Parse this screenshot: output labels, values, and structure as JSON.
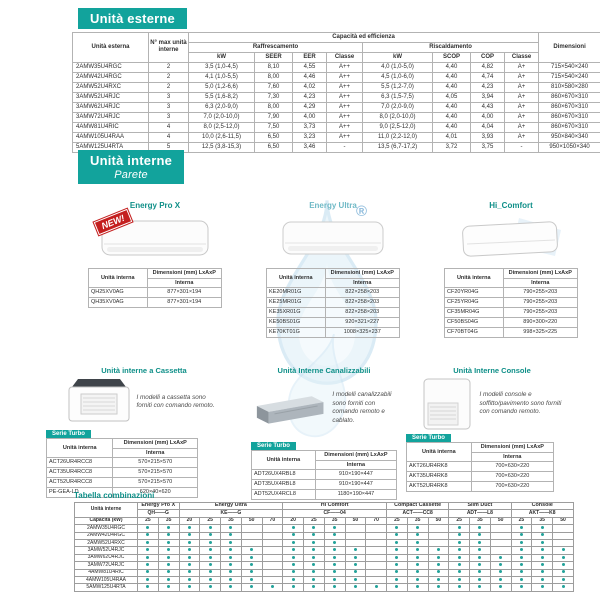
{
  "colors": {
    "teal": "#12a39c",
    "teal_text": "#0e8f88",
    "dot": "#23a29a",
    "new_badge_red": "#c41f1f",
    "watermark_blue": "#d8ecf7"
  },
  "watermark": {
    "registered_mark": "®"
  },
  "external": {
    "title": "Unità esterne",
    "table": {
      "col1": "Unità esterna",
      "col2": "N° max unità interne",
      "cap_header": "Capacità ed efficienza",
      "cooling": "Raffrescamento",
      "heating": "Riscaldamento",
      "sub": [
        "kW",
        "SEER",
        "EER",
        "Classe",
        "kW",
        "SCOP",
        "COP",
        "Classe"
      ],
      "dim": "Dimensioni",
      "rows": [
        [
          "2AMW35U4RGC",
          "2",
          "3,5 (1,0-4,5)",
          "8,10",
          "4,55",
          "A++",
          "4,0 (1,0-5,0)",
          "4,40",
          "4,82",
          "A+",
          "715×540×240"
        ],
        [
          "2AMW42U4RGC",
          "2",
          "4,1 (1,0-5,5)",
          "8,00",
          "4,46",
          "A++",
          "4,5 (1,0-6,0)",
          "4,40",
          "4,74",
          "A+",
          "715×540×240"
        ],
        [
          "2AMW52U4RXC",
          "2",
          "5,0 (1,2-6,6)",
          "7,60",
          "4,02",
          "A++",
          "5,5 (1,2-7,0)",
          "4,40",
          "4,23",
          "A+",
          "810×580×280"
        ],
        [
          "3AMW52U4RJC",
          "3",
          "5,5 (1,6-8,2)",
          "7,30",
          "4,23",
          "A++",
          "6,3 (1,5-7,5)",
          "4,05",
          "3,94",
          "A+",
          "860×670×310"
        ],
        [
          "3AMW62U4RJC",
          "3",
          "6,3 (2,0-9,0)",
          "8,00",
          "4,29",
          "A++",
          "7,0 (2,0-9,0)",
          "4,40",
          "4,43",
          "A+",
          "860×670×310"
        ],
        [
          "3AMW72U4RJC",
          "3",
          "7,0 (2,0-10,0)",
          "7,90",
          "4,00",
          "A++",
          "8,0 (2,0-10,0)",
          "4,40",
          "4,00",
          "A+",
          "860×670×310"
        ],
        [
          "4AMW81U4RIC",
          "4",
          "8,0 (2,5-12,0)",
          "7,50",
          "3,73",
          "A++",
          "9,0 (2,5-12,0)",
          "4,40",
          "4,04",
          "A+",
          "860×670×310"
        ],
        [
          "4AMW105U4RAA",
          "4",
          "10,0 (2,6-11,5)",
          "6,50",
          "3,23",
          "A++",
          "11,0 (2,2-12,0)",
          "4,01",
          "3,93",
          "A+",
          "950×840×340"
        ],
        [
          "5AMW125U4RTA",
          "5",
          "12,5 (3,8-15,3)",
          "6,50",
          "3,46",
          "-",
          "13,5 (6,7-17,2)",
          "3,72",
          "3,75",
          "-",
          "950×1050×340"
        ]
      ]
    }
  },
  "wall": {
    "title": "Unità interne",
    "subtitle": "Parete",
    "new_badge": "NEW!",
    "table_headers": {
      "unit": "Unità interna",
      "dim": "Dimensioni (mm) LxAxP",
      "sub": "Interna"
    },
    "products": [
      {
        "name": "Energy Pro X",
        "rows": [
          [
            "QH25XV0AG",
            "877×301×194"
          ],
          [
            "QH35XV0AG",
            "877×301×194"
          ]
        ]
      },
      {
        "name": "Energy Ultra",
        "rows": [
          [
            "KE20MR01G",
            "822×258×203"
          ],
          [
            "KE25MR01G",
            "822×258×203"
          ],
          [
            "KE35XR01G",
            "822×258×203"
          ],
          [
            "KE50BS01G",
            "920×321×227"
          ],
          [
            "KE70KT01G",
            "1008×325×237"
          ]
        ]
      },
      {
        "name": "Hi_Comfort",
        "rows": [
          [
            "CF20YR04G",
            "790×255×203"
          ],
          [
            "CF25YR04G",
            "790×255×203"
          ],
          [
            "CF35MR04G",
            "790×255×203"
          ],
          [
            "CF50BS04G",
            "890×300×220"
          ],
          [
            "CF70BT04G",
            "998×325×225"
          ]
        ]
      }
    ]
  },
  "other_units": [
    {
      "title": "Unità interne a Cassetta",
      "desc": "I modelli a cassetta sono forniti con comando remoto.",
      "serie": "Serie Turbo",
      "rows": [
        [
          "ACT26UR4RCC8",
          "570×215×570"
        ],
        [
          "ACT35UR4RCC8",
          "570×215×570"
        ],
        [
          "ACT52UR4RCC8",
          "570×215×570"
        ],
        [
          "PE-GEA-LD",
          "620×40×620"
        ]
      ]
    },
    {
      "title": "Unità Interne Canalizzabili",
      "desc": "I modelli canalizzabili sono forniti con comando remoto e cablato.",
      "serie": "Serie Turbo",
      "rows": [
        [
          "ADT26UX4RBL8",
          "910×190×447"
        ],
        [
          "ADT35UX4RBL8",
          "910×190×447"
        ],
        [
          "ADT52UX4RCL8",
          "1180×190×447"
        ]
      ]
    },
    {
      "title": "Unità Interne Console",
      "desc": "I modelli console e soffitto/pavimento sono forniti con comando remoto.",
      "serie": "Serie Turbo",
      "rows": [
        [
          "AKT26UR4RK8",
          "700×630×220"
        ],
        [
          "AKT35UR4RK8",
          "700×630×220"
        ],
        [
          "AKT52UR4RK8",
          "700×630×220"
        ]
      ]
    }
  ],
  "combos": {
    "title": "Tabella combinazioni",
    "row_header": "Unità interne",
    "capacity_label": "Capacità (kW)",
    "groups": [
      {
        "name": "Energy Pro X",
        "code": "QH——G",
        "caps": [
          "25",
          "35"
        ]
      },
      {
        "name": "Energy Ultra",
        "code": "KE——G",
        "caps": [
          "20",
          "25",
          "35",
          "50",
          "70"
        ]
      },
      {
        "name": "Hi Comfort",
        "code": "CF——04",
        "caps": [
          "20",
          "25",
          "35",
          "50",
          "70"
        ]
      },
      {
        "name": "Compact Cassette",
        "code": "ACT——CC8",
        "caps": [
          "25",
          "35",
          "50"
        ]
      },
      {
        "name": "Slim Duct",
        "code": "ADT——L8",
        "caps": [
          "25",
          "35",
          "50"
        ]
      },
      {
        "name": "Console",
        "code": "AKT——K8",
        "caps": [
          "25",
          "35",
          "50"
        ]
      }
    ],
    "rows": [
      {
        "model": "2AMW35U4RGC",
        "dots": [
          1,
          1,
          1,
          1,
          1,
          0,
          0,
          1,
          1,
          1,
          0,
          0,
          1,
          1,
          0,
          1,
          1,
          0,
          1,
          1,
          0
        ]
      },
      {
        "model": "2AMW42U4RGC",
        "dots": [
          1,
          1,
          1,
          1,
          1,
          0,
          0,
          1,
          1,
          1,
          0,
          0,
          1,
          1,
          0,
          1,
          1,
          0,
          1,
          1,
          0
        ]
      },
      {
        "model": "2AMW52U4RXC",
        "dots": [
          1,
          1,
          1,
          1,
          1,
          0,
          0,
          1,
          1,
          1,
          0,
          0,
          1,
          1,
          0,
          1,
          1,
          0,
          1,
          1,
          0
        ]
      },
      {
        "model": "3AMW52U4RJC",
        "dots": [
          1,
          1,
          1,
          1,
          1,
          1,
          0,
          1,
          1,
          1,
          1,
          0,
          1,
          1,
          1,
          1,
          1,
          0,
          1,
          1,
          1
        ]
      },
      {
        "model": "3AMW62U4RJC",
        "dots": [
          1,
          1,
          1,
          1,
          1,
          1,
          0,
          1,
          1,
          1,
          1,
          0,
          1,
          1,
          1,
          1,
          1,
          1,
          1,
          1,
          1
        ]
      },
      {
        "model": "3AMW72U4RJC",
        "dots": [
          1,
          1,
          1,
          1,
          1,
          1,
          0,
          1,
          1,
          1,
          1,
          0,
          1,
          1,
          1,
          1,
          1,
          1,
          1,
          1,
          1
        ]
      },
      {
        "model": "4AMW81U4RIC",
        "dots": [
          1,
          1,
          1,
          1,
          1,
          1,
          0,
          1,
          1,
          1,
          1,
          0,
          1,
          1,
          1,
          1,
          1,
          1,
          1,
          1,
          1
        ]
      },
      {
        "model": "4AMW105U4RAA",
        "dots": [
          1,
          1,
          1,
          1,
          1,
          1,
          0,
          1,
          1,
          1,
          1,
          0,
          1,
          1,
          1,
          1,
          1,
          1,
          1,
          1,
          1
        ]
      },
      {
        "model": "5AMW125U4RTA",
        "dots": [
          1,
          1,
          1,
          1,
          1,
          1,
          1,
          1,
          1,
          1,
          1,
          1,
          1,
          1,
          1,
          1,
          1,
          1,
          1,
          1,
          1
        ]
      }
    ]
  }
}
